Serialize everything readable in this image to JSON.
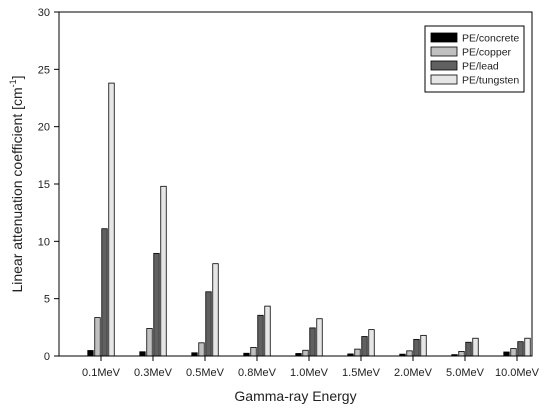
{
  "chart_data": {
    "type": "bar",
    "title": "",
    "xlabel": "Gamma-ray Energy",
    "ylabel_prefix": "Linear attenuation coefficient [cm",
    "ylabel_exponent": "-1",
    "ylabel_suffix": "]",
    "ylim": [
      0,
      30
    ],
    "yticks": [
      0,
      5,
      10,
      15,
      20,
      25,
      30
    ],
    "ytick_labels": [
      "0",
      "5",
      "10",
      "15",
      "20",
      "25",
      "30"
    ],
    "grid": false,
    "legend_position": "top-right",
    "categories": [
      "0.1MeV",
      "0.3MeV",
      "0.5MeV",
      "0.8MeV",
      "1.0MeV",
      "1.5MeV",
      "2.0MeV",
      "5.0MeV",
      "10.0MeV"
    ],
    "series": [
      {
        "name": "PE/concrete",
        "color": "#000000",
        "values": [
          0.48,
          0.37,
          0.28,
          0.24,
          0.22,
          0.18,
          0.16,
          0.12,
          0.35
        ]
      },
      {
        "name": "PE/copper",
        "color": "#c0c0c0",
        "values": [
          3.35,
          2.4,
          1.15,
          0.75,
          0.5,
          0.6,
          0.45,
          0.4,
          0.65
        ]
      },
      {
        "name": "PE/lead",
        "color": "#606060",
        "values": [
          11.1,
          8.95,
          5.6,
          3.55,
          2.45,
          1.7,
          1.45,
          1.2,
          1.25
        ]
      },
      {
        "name": "PE/tungsten",
        "color": "#e6e6e6",
        "values": [
          23.8,
          14.8,
          8.05,
          4.35,
          3.25,
          2.3,
          1.8,
          1.55,
          1.55
        ]
      }
    ]
  }
}
